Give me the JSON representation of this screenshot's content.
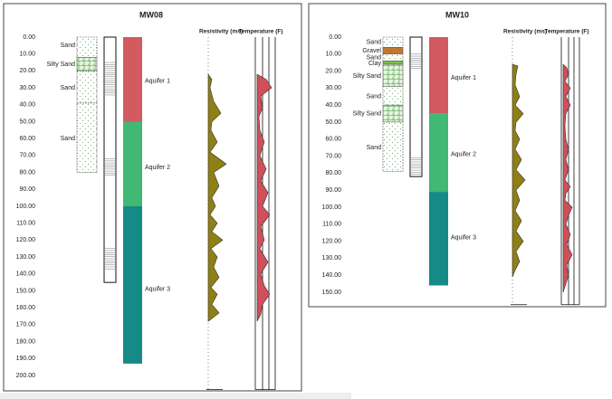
{
  "panels": [
    {
      "title": "MW08",
      "depth_ticks": [
        "0.00",
        "10.00",
        "20.00",
        "30.00",
        "40.00",
        "50.00",
        "60.00",
        "70.00",
        "80.00",
        "90.00",
        "100.00",
        "110.00",
        "120.00",
        "130.00",
        "140.00",
        "150.00",
        "160.00",
        "170.00",
        "180.00",
        "190.00",
        "200.00"
      ],
      "lithology": [
        "Sand",
        "Silty Sand",
        "Sand",
        "Sand"
      ],
      "aquifers": [
        "Aquifer 1",
        "Aquifer 2",
        "Aquifer 3"
      ],
      "resistivity_header": "Resistivity (ms)",
      "temperature_header": "Temperature (F)"
    },
    {
      "title": "MW10",
      "depth_ticks": [
        "0.00",
        "10.00",
        "20.00",
        "30.00",
        "40.00",
        "50.00",
        "60.00",
        "70.00",
        "80.00",
        "90.00",
        "100.00",
        "110.00",
        "120.00",
        "130.00",
        "140.00",
        "150.00"
      ],
      "lithology": [
        "Sand",
        "Gravel",
        "Sand",
        "Clay",
        "Silty Sand",
        "Sand",
        "Silty Sand",
        "Sand"
      ],
      "aquifers": [
        "Aquifer 1",
        "Aquifer 2",
        "Aquifer 3"
      ],
      "resistivity_header": "Resistivity (ms)",
      "temperature_header": "Temperature (F)"
    }
  ]
}
